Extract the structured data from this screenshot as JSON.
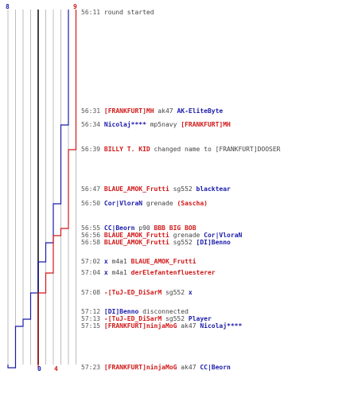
{
  "colors": {
    "blue": "#1a1aaa",
    "red": "#d01818",
    "grey": "#555555",
    "grid": "#bdbdbd",
    "center": "#444444"
  },
  "scores": {
    "blue_start": "8",
    "red_start": "9",
    "blue_end": "0",
    "red_end": "4"
  },
  "events": [
    {
      "time": "56:11",
      "parts": [
        {
          "text": "round started",
          "team": "neutral"
        }
      ]
    },
    {
      "time": "56:31",
      "parts": [
        {
          "text": "[FRANKFURT]MH",
          "team": "red"
        },
        {
          "text": " ak47 ",
          "team": "neutral"
        },
        {
          "text": "AK-EliteByte",
          "team": "blue"
        }
      ]
    },
    {
      "time": "56:34",
      "parts": [
        {
          "text": "Nicolaj****",
          "team": "blue"
        },
        {
          "text": " mp5navy ",
          "team": "neutral"
        },
        {
          "text": "[FRANKFURT]MH",
          "team": "red"
        }
      ]
    },
    {
      "time": "56:39",
      "parts": [
        {
          "text": "BILLY T. KID",
          "team": "red"
        },
        {
          "text": " changed name to [FRANKFURT]DOOSER",
          "team": "neutral"
        }
      ]
    },
    {
      "time": "56:47",
      "parts": [
        {
          "text": "BLAUE_AMOK_Frutti",
          "team": "red"
        },
        {
          "text": " sg552 ",
          "team": "neutral"
        },
        {
          "text": "blacktear",
          "team": "blue"
        }
      ]
    },
    {
      "time": "56:50",
      "parts": [
        {
          "text": "Cor|VloraN",
          "team": "blue"
        },
        {
          "text": " grenade ",
          "team": "neutral"
        },
        {
          "text": "(Sascha)",
          "team": "red"
        }
      ]
    },
    {
      "time": "56:55",
      "parts": [
        {
          "text": "CC|Beorn",
          "team": "blue"
        },
        {
          "text": " p90 ",
          "team": "neutral"
        },
        {
          "text": "BBB BIG BOB",
          "team": "red"
        }
      ]
    },
    {
      "time": "56:56",
      "parts": [
        {
          "text": "BLAUE_AMOK_Frutti",
          "team": "red"
        },
        {
          "text": " grenade ",
          "team": "neutral"
        },
        {
          "text": "Cor|VloraN",
          "team": "blue"
        }
      ]
    },
    {
      "time": "56:58",
      "parts": [
        {
          "text": "BLAUE_AMOK_Frutti",
          "team": "red"
        },
        {
          "text": " sg552 ",
          "team": "neutral"
        },
        {
          "text": "[DI]Benno",
          "team": "blue"
        }
      ]
    },
    {
      "time": "57:02",
      "parts": [
        {
          "text": "x",
          "team": "blue"
        },
        {
          "text": " m4a1 ",
          "team": "neutral"
        },
        {
          "text": "BLAUE_AMOK_Frutti",
          "team": "red"
        }
      ]
    },
    {
      "time": "57:04",
      "parts": [
        {
          "text": "x",
          "team": "blue"
        },
        {
          "text": " m4a1 ",
          "team": "neutral"
        },
        {
          "text": "derElefantenfluesterer",
          "team": "red"
        }
      ]
    },
    {
      "time": "57:08",
      "parts": [
        {
          "text": "-[TuJ-ED_DiSarM",
          "team": "red"
        },
        {
          "text": " sg552 ",
          "team": "neutral"
        },
        {
          "text": "x",
          "team": "blue"
        }
      ]
    },
    {
      "time": "57:12",
      "parts": [
        {
          "text": "[DI]Benno",
          "team": "blue"
        },
        {
          "text": " disconnected",
          "team": "neutral"
        }
      ]
    },
    {
      "time": "57:13",
      "parts": [
        {
          "text": "-[TuJ-ED_DiSarM",
          "team": "red"
        },
        {
          "text": " sg552 ",
          "team": "neutral"
        },
        {
          "text": "Player",
          "team": "blue"
        }
      ]
    },
    {
      "time": "57:15",
      "parts": [
        {
          "text": "[FRANKFURT]ninjaMoG",
          "team": "red"
        },
        {
          "text": " ak47 ",
          "team": "neutral"
        },
        {
          "text": "Nicolaj****",
          "team": "blue"
        }
      ]
    },
    {
      "time": "57:23",
      "parts": [
        {
          "text": "[FRANKFURT]ninjaMoG",
          "team": "red"
        },
        {
          "text": " ak47 ",
          "team": "neutral"
        },
        {
          "text": "CC|Beorn",
          "team": "blue"
        }
      ]
    }
  ],
  "blue_alive": [
    8,
    8,
    7,
    7,
    7,
    6,
    6,
    6,
    5,
    4,
    4,
    3,
    3,
    2,
    1,
    0
  ],
  "red_alive": [
    9,
    9,
    9,
    8,
    8,
    8,
    7,
    6,
    6,
    6,
    5,
    4,
    4,
    4,
    4,
    4
  ]
}
